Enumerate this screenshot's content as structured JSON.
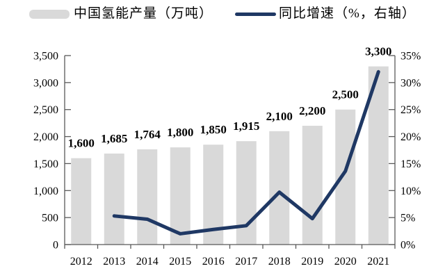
{
  "legend": {
    "bar": {
      "label": "中国氢能产量（万吨）",
      "color": "#d9d9d9"
    },
    "line": {
      "label": "同比增速（%，右轴）",
      "color": "#1f3864"
    }
  },
  "chart_data": {
    "type": "bar+line",
    "title": "",
    "categories": [
      "2012",
      "2013",
      "2014",
      "2015",
      "2016",
      "2017",
      "2018",
      "2019",
      "2020",
      "2021"
    ],
    "series": [
      {
        "name": "中国氢能产量（万吨）",
        "type": "bar",
        "axis": "left",
        "color": "#d9d9d9",
        "values": [
          1600,
          1685,
          1764,
          1800,
          1850,
          1915,
          2100,
          2200,
          2500,
          3300
        ],
        "value_labels": [
          "1,600",
          "1,685",
          "1,764",
          "1,800",
          "1,850",
          "1,915",
          "2,100",
          "2,200",
          "2,500",
          "3,300"
        ]
      },
      {
        "name": "同比增速（%，右轴）",
        "type": "line",
        "axis": "right",
        "color": "#1f3864",
        "values": [
          null,
          5.3,
          4.7,
          2.0,
          2.8,
          3.5,
          9.7,
          4.8,
          13.6,
          32.0
        ]
      }
    ],
    "left_axis": {
      "min": 0,
      "max": 3500,
      "step": 500,
      "tick_labels": [
        "0",
        "500",
        "1,000",
        "1,500",
        "2,000",
        "2,500",
        "3,000",
        "3,500"
      ]
    },
    "right_axis": {
      "min": 0,
      "max": 35,
      "step": 5,
      "tick_labels": [
        "0%",
        "5%",
        "10%",
        "15%",
        "20%",
        "25%",
        "30%",
        "35%"
      ]
    },
    "grid": false,
    "legend_position": "top",
    "text_color": "#000000",
    "axis_color": "#595959"
  }
}
